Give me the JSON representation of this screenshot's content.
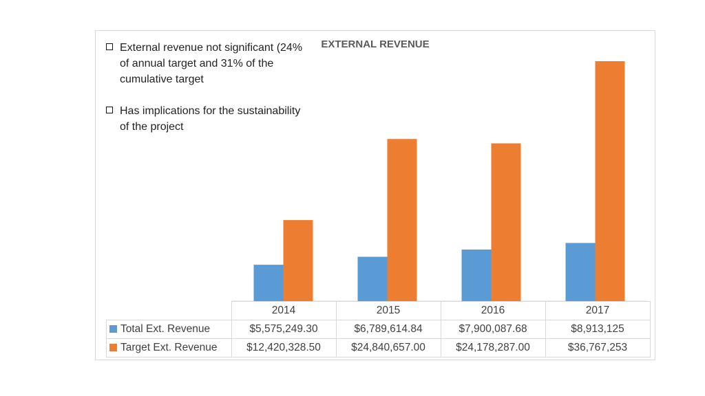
{
  "notes": [
    "External revenue not significant (24% of annual target and 31% of the cumulative target",
    "Has implications for the sustainability of the project"
  ],
  "colors": {
    "total": "#5b9bd5",
    "target": "#ed7d31"
  },
  "chart_data": {
    "type": "bar",
    "title": "EXTERNAL REVENUE",
    "categories": [
      "2014",
      "2015",
      "2016",
      "2017"
    ],
    "series": [
      {
        "name": "Total Ext. Revenue",
        "values": [
          5575249.3,
          6789614.84,
          7900087.68,
          8913125
        ],
        "labels": [
          "$5,575,249.30",
          "$6,789,614.84",
          "$7,900,087.68",
          "$8,913,125"
        ]
      },
      {
        "name": "Target Ext. Revenue",
        "values": [
          12420328.5,
          24840657.0,
          24178287.0,
          36767253
        ],
        "labels": [
          "$12,420,328.50",
          "$24,840,657.00",
          "$24,178,287.00",
          "$36,767,253"
        ]
      }
    ],
    "ylim": [
      0,
      37500000
    ],
    "legend": "data-table",
    "grid": false
  }
}
